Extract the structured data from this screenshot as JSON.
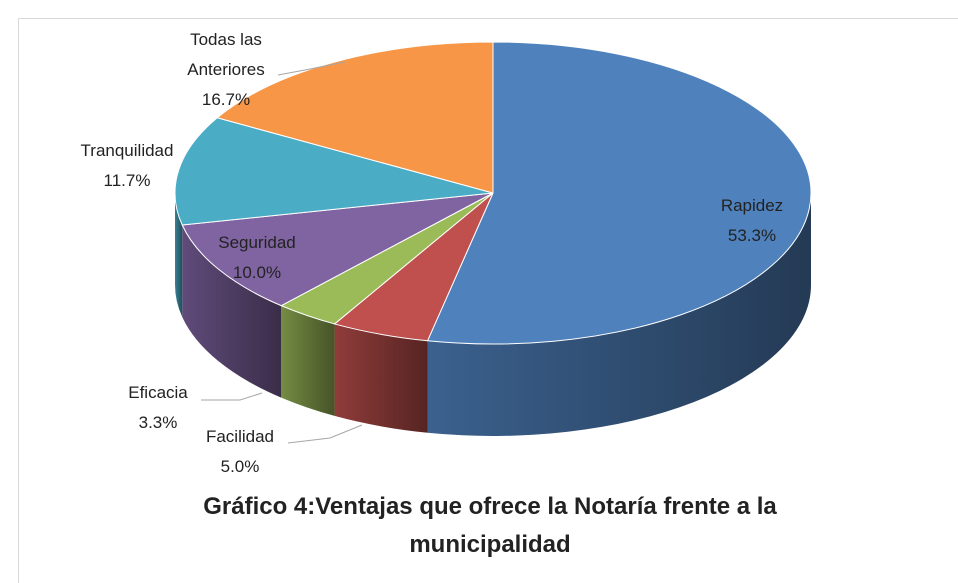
{
  "chart_data": {
    "type": "pie",
    "title": "Gráfico 4:Ventajas que ofrece la Notaría frente a la municipalidad",
    "categories": [
      "Rapidez",
      "Facilidad",
      "Eficacia",
      "Seguridad",
      "Tranquilidad",
      "Todas las Anteriores"
    ],
    "values": [
      53.3,
      5.0,
      3.3,
      10.0,
      11.7,
      16.7
    ],
    "value_labels": [
      "53.3%",
      "5.0%",
      "3.3%",
      "10.0%",
      "11.7%",
      "16.7%"
    ],
    "colors": [
      "#4f81bd",
      "#c0504d",
      "#9bbb59",
      "#8064a2",
      "#4bacc6",
      "#f79646"
    ]
  }
}
